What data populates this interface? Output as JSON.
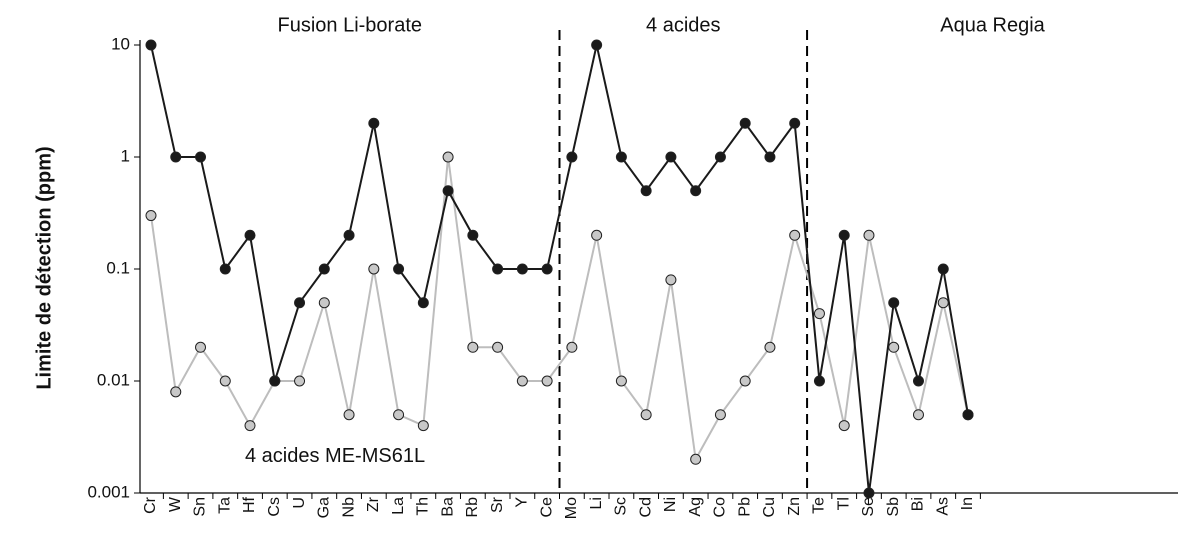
{
  "chart_data": {
    "type": "line",
    "ylabel": "Limite de détection (ppm)",
    "log_scale": true,
    "ylim": [
      0.001,
      10
    ],
    "yticks": [
      0.001,
      0.01,
      0.1,
      1,
      10
    ],
    "sections": [
      "Fusion Li-borate",
      "4 acides",
      "Aqua Regia"
    ],
    "annotation": "4 acides ME-MS61L",
    "categories": [
      "Cr",
      "W",
      "Sn",
      "Ta",
      "Hf",
      "Cs",
      "U",
      "Ga",
      "Nb",
      "Zr",
      "La",
      "Th",
      "Ba",
      "Rb",
      "Sr",
      "Y",
      "Ce",
      "Mo",
      "Li",
      "Sc",
      "Cd",
      "Ni",
      "Ag",
      "Co",
      "Pb",
      "Cu",
      "Zn",
      "Te",
      "Tl",
      "Se",
      "Sb",
      "Bi",
      "As",
      "In"
    ],
    "series": [
      {
        "color": "#bdbdbd",
        "marker_color": "#c8c8c8",
        "values": [
          0.3,
          0.008,
          0.02,
          0.01,
          0.004,
          0.01,
          0.01,
          0.05,
          0.005,
          0.1,
          0.005,
          0.004,
          1,
          0.02,
          0.02,
          0.01,
          0.01,
          0.02,
          0.2,
          0.01,
          0.005,
          0.08,
          0.002,
          0.005,
          0.01,
          0.02,
          0.2,
          0.04,
          0.004,
          0.2,
          0.02,
          0.005,
          0.05,
          0.005
        ]
      },
      {
        "color": "#1a1a1a",
        "marker_color": "#1a1a1a",
        "values": [
          10,
          1,
          1,
          0.1,
          0.2,
          0.01,
          0.05,
          0.1,
          0.2,
          2,
          0.1,
          0.05,
          0.5,
          0.2,
          0.1,
          0.1,
          0.1,
          1,
          10,
          1,
          0.5,
          1,
          0.5,
          1,
          2,
          1,
          2,
          0.01,
          0.2,
          0.001,
          0.05,
          0.01,
          0.1,
          0.005
        ]
      }
    ]
  }
}
